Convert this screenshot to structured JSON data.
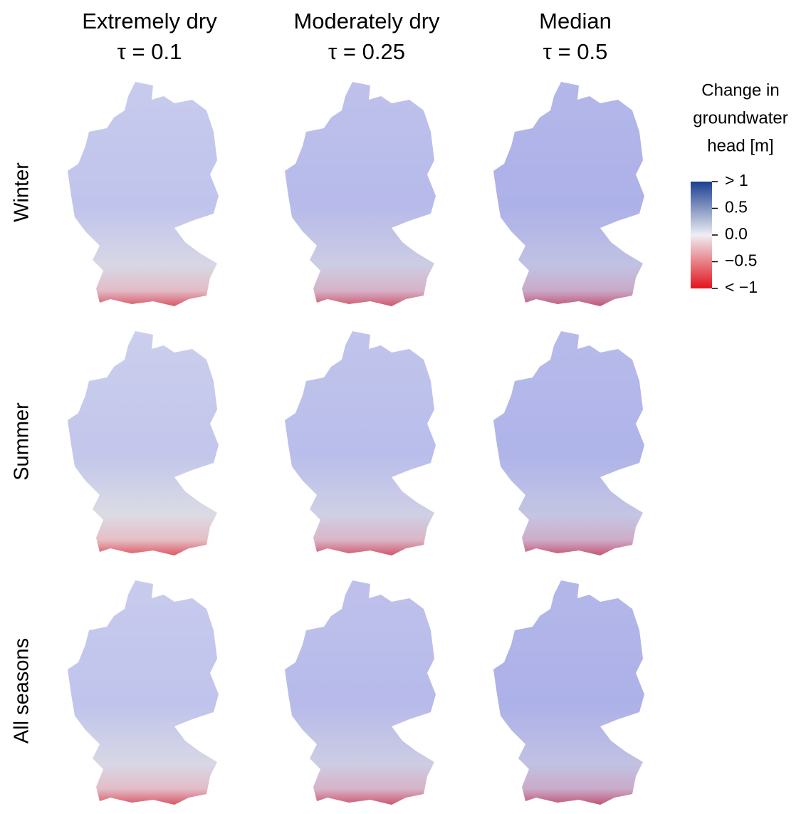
{
  "columns": [
    {
      "name": "Extremely dry",
      "tau": "τ = 0.1"
    },
    {
      "name": "Moderately dry",
      "tau": "τ = 0.25"
    },
    {
      "name": "Median",
      "tau": "τ = 0.5"
    }
  ],
  "rows": [
    "Winter",
    "Summer",
    "All seasons"
  ],
  "legend": {
    "title": [
      "Change in",
      "groundwater",
      "head [m]"
    ],
    "lim": [
      -1,
      1
    ],
    "ticks": [
      {
        "value": 1,
        "label": "> 1"
      },
      0.5,
      {
        "value": 0,
        "label": "0.0"
      },
      {
        "value": -0.5,
        "label": "−0.5"
      },
      {
        "value": -1,
        "label": "< −1"
      }
    ],
    "colors": [
      "#1c3f91",
      "#eeeef4",
      "#e3141c"
    ]
  }
}
